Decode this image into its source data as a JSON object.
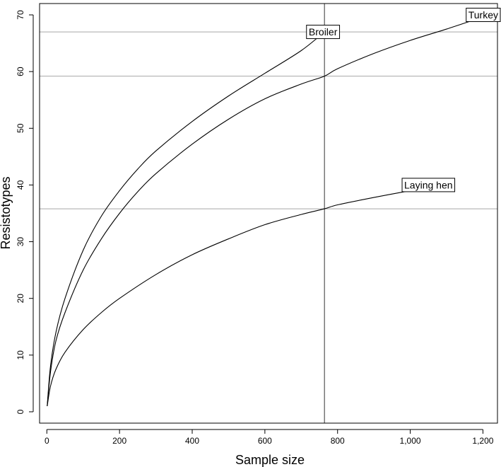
{
  "chart_data": {
    "type": "line",
    "title": "",
    "xlabel": "Sample size",
    "ylabel": "Resistotypes",
    "xlim": [
      -20,
      1240
    ],
    "ylim": [
      -2,
      72
    ],
    "x_ticks": [
      0,
      200,
      400,
      600,
      800,
      1000,
      1200
    ],
    "x_tick_labels": [
      "0",
      "200",
      "400",
      "600",
      "800",
      "1,000",
      "1,200"
    ],
    "y_ticks": [
      0,
      10,
      20,
      30,
      40,
      50,
      60,
      70
    ],
    "y_tick_labels": [
      "0",
      "10",
      "20",
      "30",
      "40",
      "50",
      "60",
      "70"
    ],
    "grid": false,
    "reference_lines": {
      "vertical_x": 764,
      "horizontal_y": [
        67,
        59.2,
        35.8
      ]
    },
    "series": [
      {
        "name": "Broiler",
        "x": [
          1,
          10,
          25,
          50,
          100,
          150,
          200,
          250,
          300,
          400,
          500,
          600,
          700,
          764
        ],
        "y": [
          1,
          8,
          14,
          20,
          28.5,
          34.5,
          39,
          42.8,
          46,
          51.2,
          55.7,
          59.7,
          63.7,
          67
        ]
      },
      {
        "name": "Turkey",
        "x": [
          1,
          10,
          25,
          50,
          100,
          150,
          200,
          250,
          300,
          400,
          500,
          600,
          700,
          764,
          800,
          900,
          1000,
          1100,
          1180
        ],
        "y": [
          1,
          7,
          12.5,
          17.5,
          25,
          30.5,
          35,
          38.8,
          42,
          47.2,
          51.6,
          55.2,
          57.8,
          59.2,
          60.5,
          63.2,
          65.5,
          67.5,
          69.2
        ]
      },
      {
        "name": "Laying hen",
        "x": [
          1,
          10,
          25,
          50,
          100,
          150,
          200,
          300,
          400,
          500,
          600,
          700,
          764,
          800,
          900,
          1000
        ],
        "y": [
          1,
          4.5,
          7.5,
          10.5,
          14.5,
          17.5,
          20,
          24.2,
          27.7,
          30.5,
          33,
          34.8,
          35.8,
          36.5,
          37.8,
          39
        ]
      }
    ],
    "annotations": [
      {
        "text": "Broiler",
        "x": 760,
        "y": 67
      },
      {
        "text": "Turkey",
        "x": 1210,
        "y": 70
      },
      {
        "text": "Laying hen",
        "x": 1050,
        "y": 40
      }
    ]
  }
}
